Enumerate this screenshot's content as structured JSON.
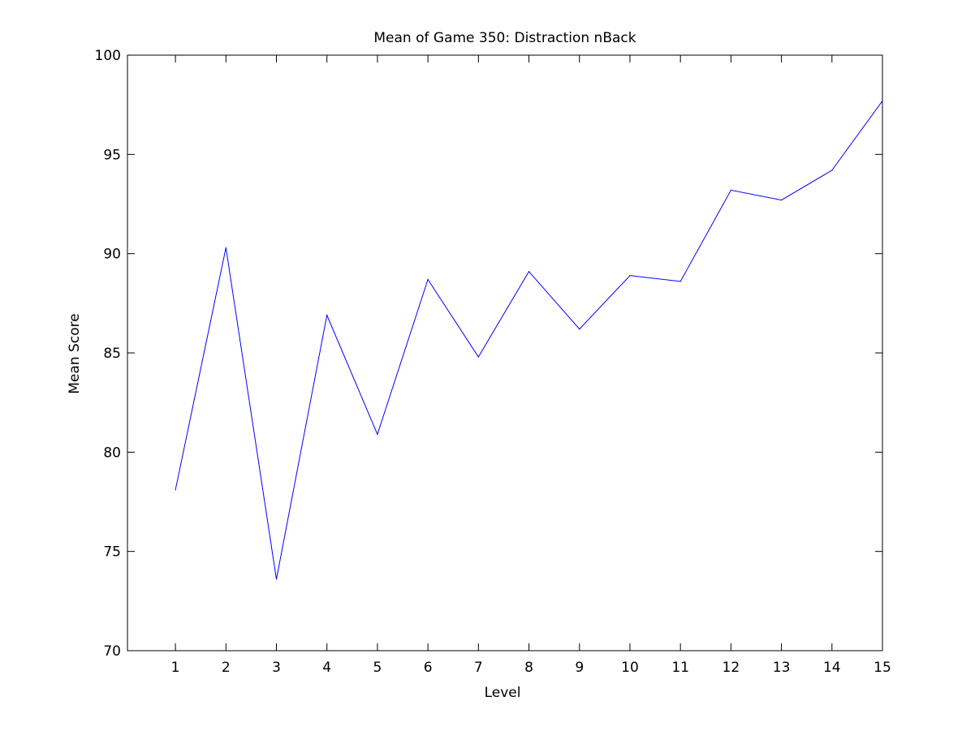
{
  "chart_data": {
    "type": "line",
    "title": "Mean of Game 350: Distraction nBack",
    "xlabel": "Level",
    "ylabel": "Mean Score",
    "xlim": [
      0.05,
      15
    ],
    "ylim": [
      70,
      100
    ],
    "xticks": [
      1,
      2,
      3,
      4,
      5,
      6,
      7,
      8,
      9,
      10,
      11,
      12,
      13,
      14,
      15
    ],
    "yticks": [
      70,
      75,
      80,
      85,
      90,
      95,
      100
    ],
    "grid": false,
    "legend": "none",
    "series": [
      {
        "color": "#0000ff",
        "x": [
          1,
          2,
          3,
          4,
          5,
          6,
          7,
          8,
          9,
          10,
          11,
          12,
          13,
          14,
          15
        ],
        "values": [
          78.1,
          90.3,
          73.6,
          86.9,
          80.9,
          88.7,
          84.8,
          89.1,
          86.2,
          88.9,
          88.6,
          93.2,
          92.7,
          94.2,
          97.7
        ]
      }
    ]
  }
}
